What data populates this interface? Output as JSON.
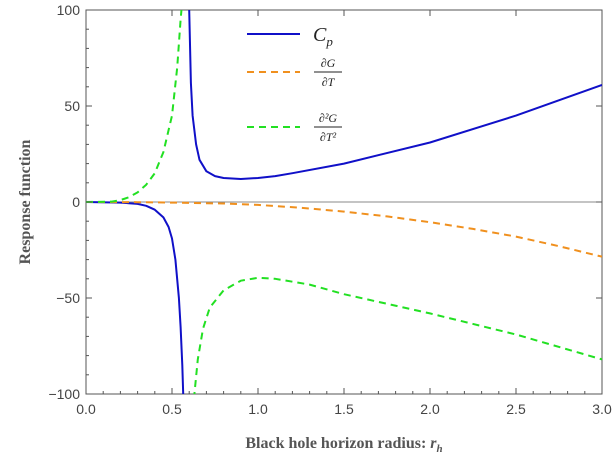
{
  "chart_data": {
    "type": "line",
    "title": "",
    "xlabel": "Black hole horizon radius: ",
    "xlabel_symbol": "r",
    "xlabel_subscript": "h",
    "ylabel": "Response function",
    "xlim": [
      0,
      3
    ],
    "ylim": [
      -100,
      100
    ],
    "x_ticks": [
      0.0,
      0.5,
      1.0,
      1.5,
      2.0,
      2.5,
      3.0
    ],
    "x_tick_labels": [
      "0.0",
      "0.5",
      "1.0",
      "1.5",
      "2.0",
      "2.5",
      "3.0"
    ],
    "y_ticks": [
      -100,
      -50,
      0,
      50,
      100
    ],
    "y_tick_labels": [
      "−100",
      "−50",
      "0",
      "50",
      "100"
    ],
    "grid": false,
    "legend_position": "top-center",
    "series": [
      {
        "name": "C_p",
        "legend_text": "C",
        "legend_sub": "p",
        "color": "#1010c8",
        "style": "solid",
        "segments": [
          {
            "x": [
              0.0,
              0.2,
              0.3,
              0.35,
              0.4,
              0.45,
              0.48,
              0.5,
              0.52,
              0.54,
              0.55,
              0.56,
              0.565,
              0.57
            ],
            "y": [
              0,
              -0.3,
              -1,
              -2,
              -4,
              -8,
              -13,
              -19,
              -30,
              -50,
              -65,
              -85,
              -100,
              -110
            ]
          },
          {
            "x": [
              0.59,
              0.6,
              0.61,
              0.62,
              0.64,
              0.66,
              0.7,
              0.75,
              0.8,
              0.9,
              1.0,
              1.1,
              1.2,
              1.5,
              2.0,
              2.5,
              3.0
            ],
            "y": [
              120,
              100,
              62,
              45,
              30,
              22,
              16,
              13.5,
              12.5,
              12,
              12.5,
              13.5,
              15,
              20,
              31,
              45,
              61
            ]
          }
        ]
      },
      {
        "name": "∂G/∂T",
        "legend_num": "∂G",
        "legend_den": "∂T",
        "color": "#f0901e",
        "style": "dashed",
        "segments": [
          {
            "x": [
              0.0,
              0.3,
              0.5,
              0.8,
              1.0,
              1.25,
              1.5,
              1.75,
              2.0,
              2.25,
              2.5,
              2.75,
              3.0
            ],
            "y": [
              0,
              -0.1,
              -0.3,
              -0.8,
              -1.5,
              -3,
              -5,
              -7.5,
              -10.5,
              -14,
              -18,
              -23,
              -28.5
            ]
          }
        ]
      },
      {
        "name": "∂²G/∂T²",
        "legend_num": "∂²G",
        "legend_den": "∂T²",
        "color": "#22e022",
        "style": "dashed",
        "segments": [
          {
            "x": [
              0.0,
              0.15,
              0.2,
              0.25,
              0.3,
              0.35,
              0.4,
              0.45,
              0.5,
              0.53,
              0.55,
              0.56,
              0.58
            ],
            "y": [
              0,
              0.2,
              1,
              2.5,
              5,
              9,
              15,
              26,
              45,
              70,
              95,
              105,
              130
            ]
          },
          {
            "x": [
              0.6,
              0.62,
              0.63,
              0.65,
              0.68,
              0.72,
              0.8,
              0.9,
              1.0,
              1.1,
              1.3,
              1.5,
              2.0,
              2.5,
              3.0
            ],
            "y": [
              -140,
              -110,
              -100,
              -82,
              -66,
              -55,
              -46,
              -41,
              -39.5,
              -40,
              -43,
              -48,
              -58,
              -69,
              -82
            ]
          }
        ]
      }
    ]
  }
}
